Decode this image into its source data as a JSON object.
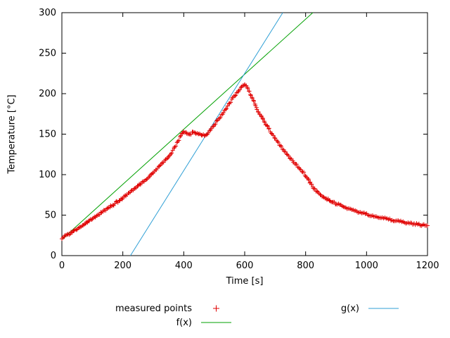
{
  "figure": {
    "background": "#ffffff",
    "axis_color": "#000000"
  },
  "chart_data": {
    "type": "scatter",
    "title": "",
    "xlabel": "Time [s]",
    "ylabel": "Temperature [°C]",
    "xlim": [
      0,
      1200
    ],
    "ylim": [
      0,
      300
    ],
    "xticks": [
      0,
      200,
      400,
      600,
      800,
      1000,
      1200
    ],
    "yticks": [
      0,
      50,
      100,
      150,
      200,
      250,
      300
    ],
    "grid": false,
    "legend_position": "below-plot",
    "series": [
      {
        "name": "measured points",
        "type": "points",
        "marker": "plus",
        "color": "#e00000",
        "marker_step": 4,
        "jitter": 1.2,
        "points": [
          [
            0,
            22
          ],
          [
            10,
            24
          ],
          [
            20,
            26
          ],
          [
            30,
            28
          ],
          [
            40,
            31
          ],
          [
            50,
            33
          ],
          [
            60,
            36
          ],
          [
            70,
            38
          ],
          [
            80,
            41
          ],
          [
            90,
            43
          ],
          [
            100,
            46
          ],
          [
            110,
            48
          ],
          [
            120,
            51
          ],
          [
            130,
            53
          ],
          [
            140,
            56
          ],
          [
            150,
            58
          ],
          [
            160,
            61
          ],
          [
            170,
            63
          ],
          [
            180,
            66
          ],
          [
            190,
            68
          ],
          [
            200,
            71
          ],
          [
            210,
            74
          ],
          [
            220,
            77
          ],
          [
            230,
            80
          ],
          [
            240,
            83
          ],
          [
            250,
            86
          ],
          [
            260,
            89
          ],
          [
            270,
            92
          ],
          [
            280,
            95
          ],
          [
            290,
            99
          ],
          [
            300,
            103
          ],
          [
            310,
            106
          ],
          [
            320,
            110
          ],
          [
            330,
            114
          ],
          [
            340,
            118
          ],
          [
            350,
            122
          ],
          [
            360,
            127
          ],
          [
            370,
            133
          ],
          [
            380,
            140
          ],
          [
            390,
            148
          ],
          [
            395,
            152
          ],
          [
            400,
            153
          ],
          [
            410,
            151
          ],
          [
            420,
            150
          ],
          [
            430,
            152
          ],
          [
            440,
            151
          ],
          [
            450,
            150
          ],
          [
            460,
            149
          ],
          [
            470,
            148
          ],
          [
            480,
            151
          ],
          [
            490,
            156
          ],
          [
            500,
            161
          ],
          [
            510,
            166
          ],
          [
            520,
            171
          ],
          [
            530,
            177
          ],
          [
            540,
            182
          ],
          [
            550,
            188
          ],
          [
            560,
            194
          ],
          [
            570,
            199
          ],
          [
            580,
            204
          ],
          [
            590,
            208
          ],
          [
            600,
            211
          ],
          [
            605,
            210
          ],
          [
            610,
            207
          ],
          [
            615,
            203
          ],
          [
            620,
            199
          ],
          [
            625,
            195
          ],
          [
            630,
            190
          ],
          [
            635,
            186
          ],
          [
            640,
            181
          ],
          [
            645,
            177
          ],
          [
            650,
            174
          ],
          [
            655,
            171
          ],
          [
            660,
            168
          ],
          [
            665,
            165
          ],
          [
            670,
            162
          ],
          [
            675,
            159
          ],
          [
            680,
            156
          ],
          [
            690,
            150
          ],
          [
            700,
            144
          ],
          [
            710,
            139
          ],
          [
            720,
            134
          ],
          [
            730,
            129
          ],
          [
            740,
            124
          ],
          [
            750,
            120
          ],
          [
            760,
            116
          ],
          [
            770,
            112
          ],
          [
            780,
            108
          ],
          [
            790,
            104
          ],
          [
            800,
            99
          ],
          [
            805,
            96
          ],
          [
            810,
            93
          ],
          [
            815,
            90
          ],
          [
            820,
            87
          ],
          [
            825,
            84
          ],
          [
            830,
            82
          ],
          [
            840,
            78
          ],
          [
            850,
            75
          ],
          [
            860,
            72
          ],
          [
            870,
            70
          ],
          [
            880,
            68
          ],
          [
            890,
            66
          ],
          [
            900,
            64
          ],
          [
            920,
            61
          ],
          [
            940,
            58
          ],
          [
            960,
            55
          ],
          [
            980,
            53
          ],
          [
            1000,
            51
          ],
          [
            1020,
            49
          ],
          [
            1040,
            47
          ],
          [
            1060,
            46
          ],
          [
            1080,
            44
          ],
          [
            1100,
            43
          ],
          [
            1120,
            41
          ],
          [
            1140,
            40
          ],
          [
            1160,
            39
          ],
          [
            1180,
            38
          ],
          [
            1200,
            37
          ]
        ]
      },
      {
        "name": "f(x)",
        "type": "linear",
        "slope": 0.34,
        "intercept": 20,
        "color": "#00a000"
      },
      {
        "name": "g(x)",
        "type": "linear",
        "slope": 0.6,
        "intercept": -135,
        "color": "#2f9fd5"
      }
    ]
  }
}
